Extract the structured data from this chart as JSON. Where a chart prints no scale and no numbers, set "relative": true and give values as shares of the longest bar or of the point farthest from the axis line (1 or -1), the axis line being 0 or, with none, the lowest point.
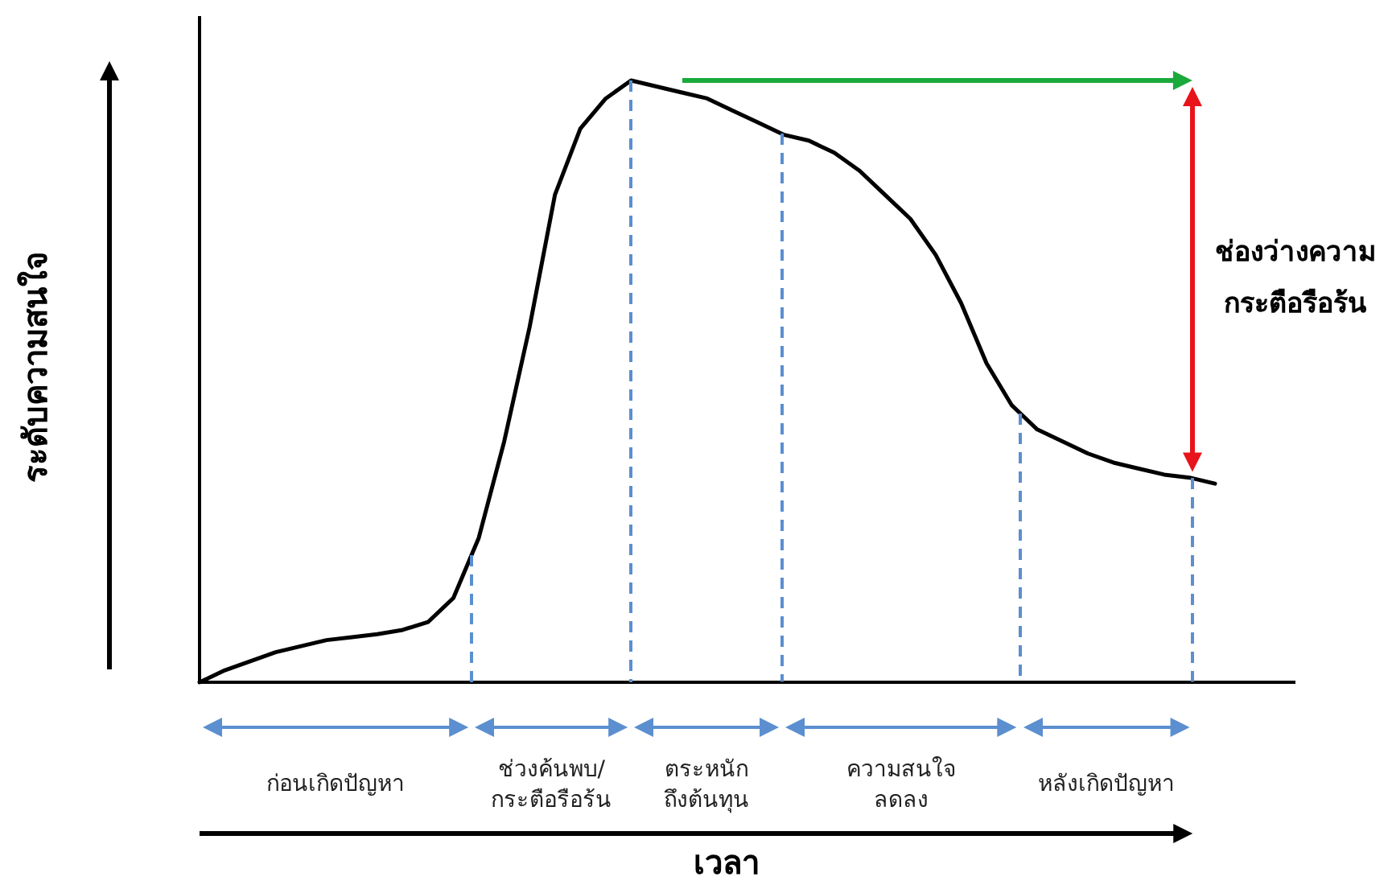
{
  "chart_data": {
    "type": "line",
    "relative": true,
    "ylabel": "ระดับความสนใจ",
    "marker": "none",
    "line_style": "solid",
    "categories": [
      null,
      null,
      null,
      null,
      null,
      null,
      null,
      null,
      null,
      null,
      null,
      null,
      null,
      null,
      null,
      null,
      null,
      null,
      null,
      null,
      null,
      null,
      null,
      null,
      null,
      null,
      null,
      null,
      null,
      null,
      null,
      null,
      null,
      null,
      null,
      null,
      null,
      null,
      null,
      null,
      null
    ],
    "series": [
      {
        "color": "#000000",
        "values": [
          0,
          0.02,
          0.035,
          0.05,
          0.06,
          0.07,
          0.075,
          0.08,
          0.087,
          0.1,
          0.14,
          0.24,
          0.4,
          0.59,
          0.81,
          0.92,
          0.97,
          1,
          0.99,
          0.98,
          0.97,
          0.95,
          0.93,
          0.91,
          0.9,
          0.88,
          0.85,
          0.81,
          0.77,
          0.71,
          0.63,
          0.53,
          0.46,
          0.42,
          0.4,
          0.38,
          0.365,
          0.355,
          0.345,
          0.34,
          0.33
        ]
      }
    ],
    "annotations": [
      "ก่อนเกิดปัญหา",
      "ช่วงค้นพบ/\nกระตือรือร้น",
      "ตระหนัก\nถึงต้นทุน",
      "ความสนใจ\nลดลง",
      "หลังเกิดปัญหา",
      "ช่องว่างความ\nกระตือรือร้น",
      "เวลา"
    ]
  }
}
